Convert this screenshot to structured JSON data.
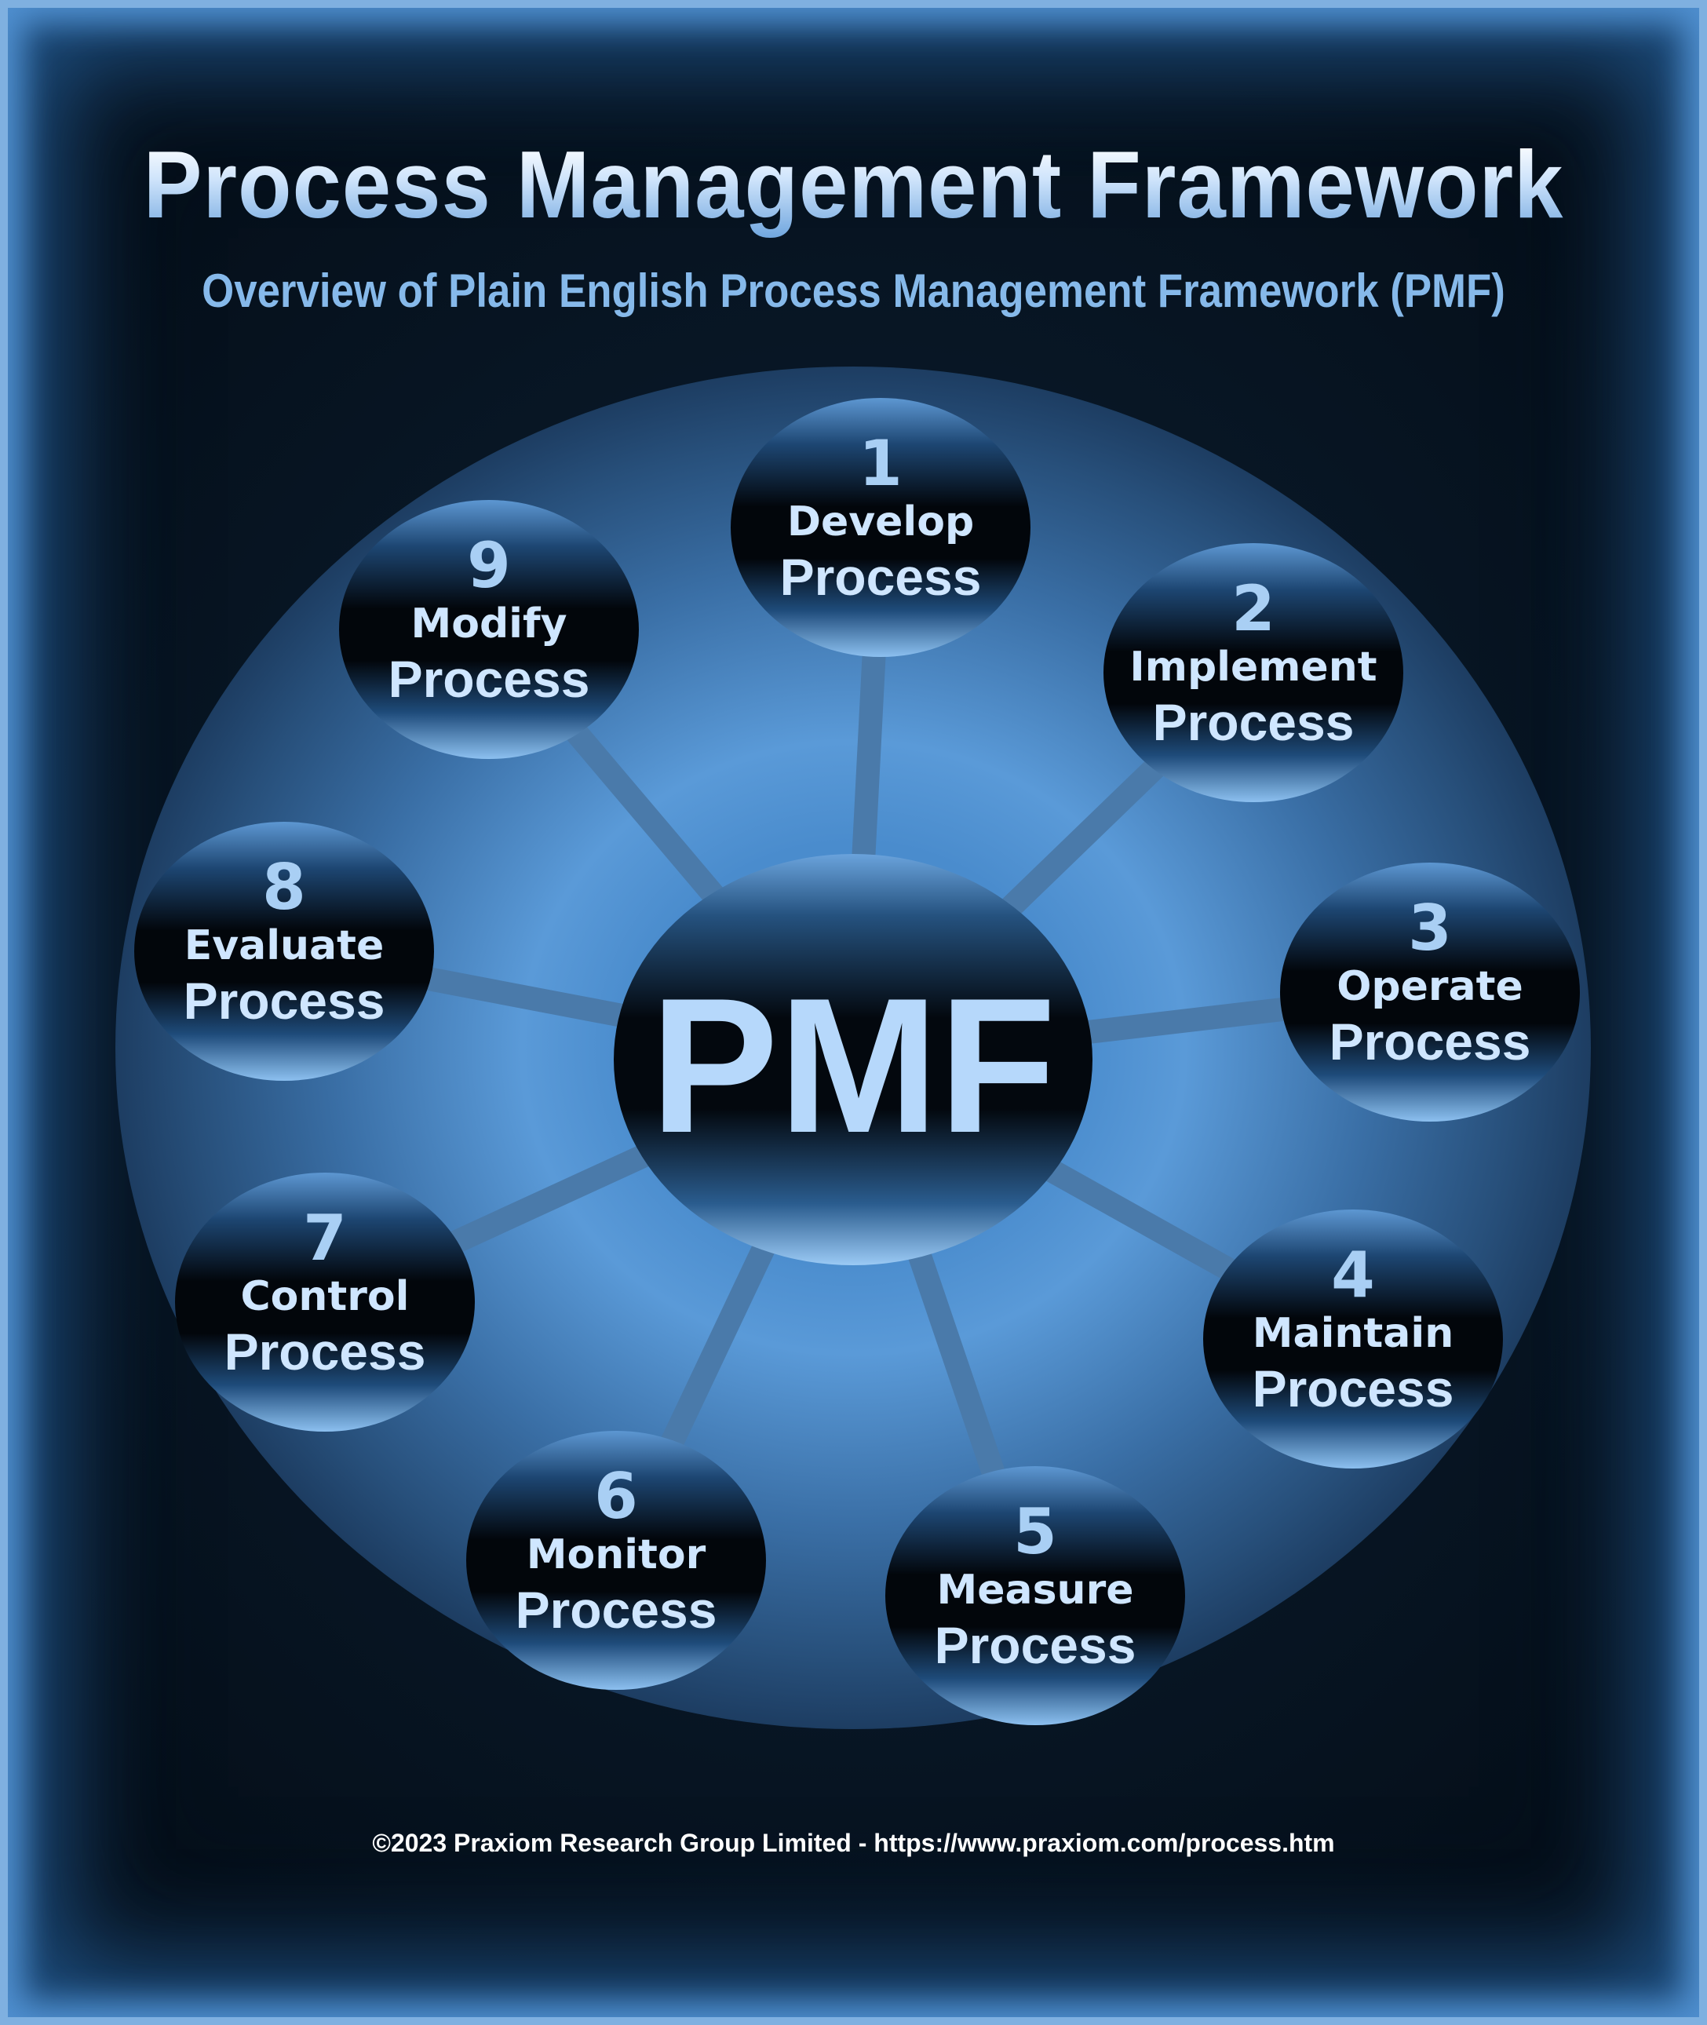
{
  "title": "Process Management Framework",
  "subtitle": "Overview of Plain English Process Management Framework (PMF)",
  "center": {
    "label": "PMF"
  },
  "nodes": [
    {
      "number": "1",
      "line1": "Develop",
      "line2": "Process"
    },
    {
      "number": "2",
      "line1": "Implement",
      "line2": "Process"
    },
    {
      "number": "3",
      "line1": "Operate",
      "line2": "Process"
    },
    {
      "number": "4",
      "line1": "Maintain",
      "line2": "Process"
    },
    {
      "number": "5",
      "line1": "Measure",
      "line2": "Process"
    },
    {
      "number": "6",
      "line1": "Monitor",
      "line2": "Process"
    },
    {
      "number": "7",
      "line1": "Control",
      "line2": "Process"
    },
    {
      "number": "8",
      "line1": "Evaluate",
      "line2": "Process"
    },
    {
      "number": "9",
      "line1": "Modify",
      "line2": "Process"
    }
  ],
  "footer": "©2023 Praxiom Research Group Limited - https://www.praxiom.com/process.htm",
  "colors": {
    "background": "#081726",
    "frame_accent": "#4f8fcf",
    "disc": "#3f78b4",
    "node_fill": "#050c14",
    "text_light": "#cfe6ff"
  }
}
